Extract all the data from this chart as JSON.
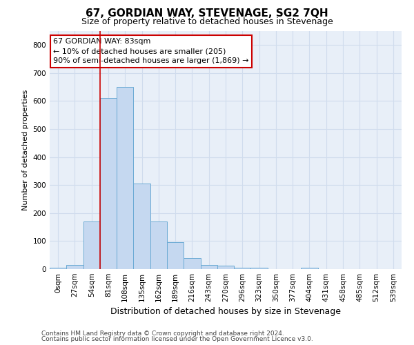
{
  "title": "67, GORDIAN WAY, STEVENAGE, SG2 7QH",
  "subtitle": "Size of property relative to detached houses in Stevenage",
  "xlabel": "Distribution of detached houses by size in Stevenage",
  "ylabel": "Number of detached properties",
  "bar_labels": [
    "0sqm",
    "27sqm",
    "54sqm",
    "81sqm",
    "108sqm",
    "135sqm",
    "162sqm",
    "189sqm",
    "216sqm",
    "243sqm",
    "270sqm",
    "296sqm",
    "323sqm",
    "350sqm",
    "377sqm",
    "404sqm",
    "431sqm",
    "458sqm",
    "485sqm",
    "512sqm",
    "539sqm"
  ],
  "bar_values": [
    5,
    15,
    170,
    610,
    650,
    305,
    170,
    97,
    40,
    15,
    12,
    5,
    5,
    0,
    0,
    5,
    0,
    0,
    0,
    0,
    0
  ],
  "bar_color": "#c5d8f0",
  "bar_edge_color": "#6aaad4",
  "grid_color": "#d0dced",
  "background_color": "#e8eff8",
  "vline_color": "#cc0000",
  "annotation_line1": "67 GORDIAN WAY: 83sqm",
  "annotation_line2": "← 10% of detached houses are smaller (205)",
  "annotation_line3": "90% of semi-detached houses are larger (1,869) →",
  "annotation_box_color": "white",
  "annotation_box_edge": "#cc0000",
  "ylim": [
    0,
    850
  ],
  "yticks": [
    0,
    100,
    200,
    300,
    400,
    500,
    600,
    700,
    800
  ],
  "footer1": "Contains HM Land Registry data © Crown copyright and database right 2024.",
  "footer2": "Contains public sector information licensed under the Open Government Licence v3.0.",
  "title_fontsize": 11,
  "subtitle_fontsize": 9,
  "ylabel_fontsize": 8,
  "xlabel_fontsize": 9,
  "tick_fontsize": 7.5,
  "annotation_fontsize": 8,
  "footer_fontsize": 6.5,
  "vline_bar_index": 3
}
